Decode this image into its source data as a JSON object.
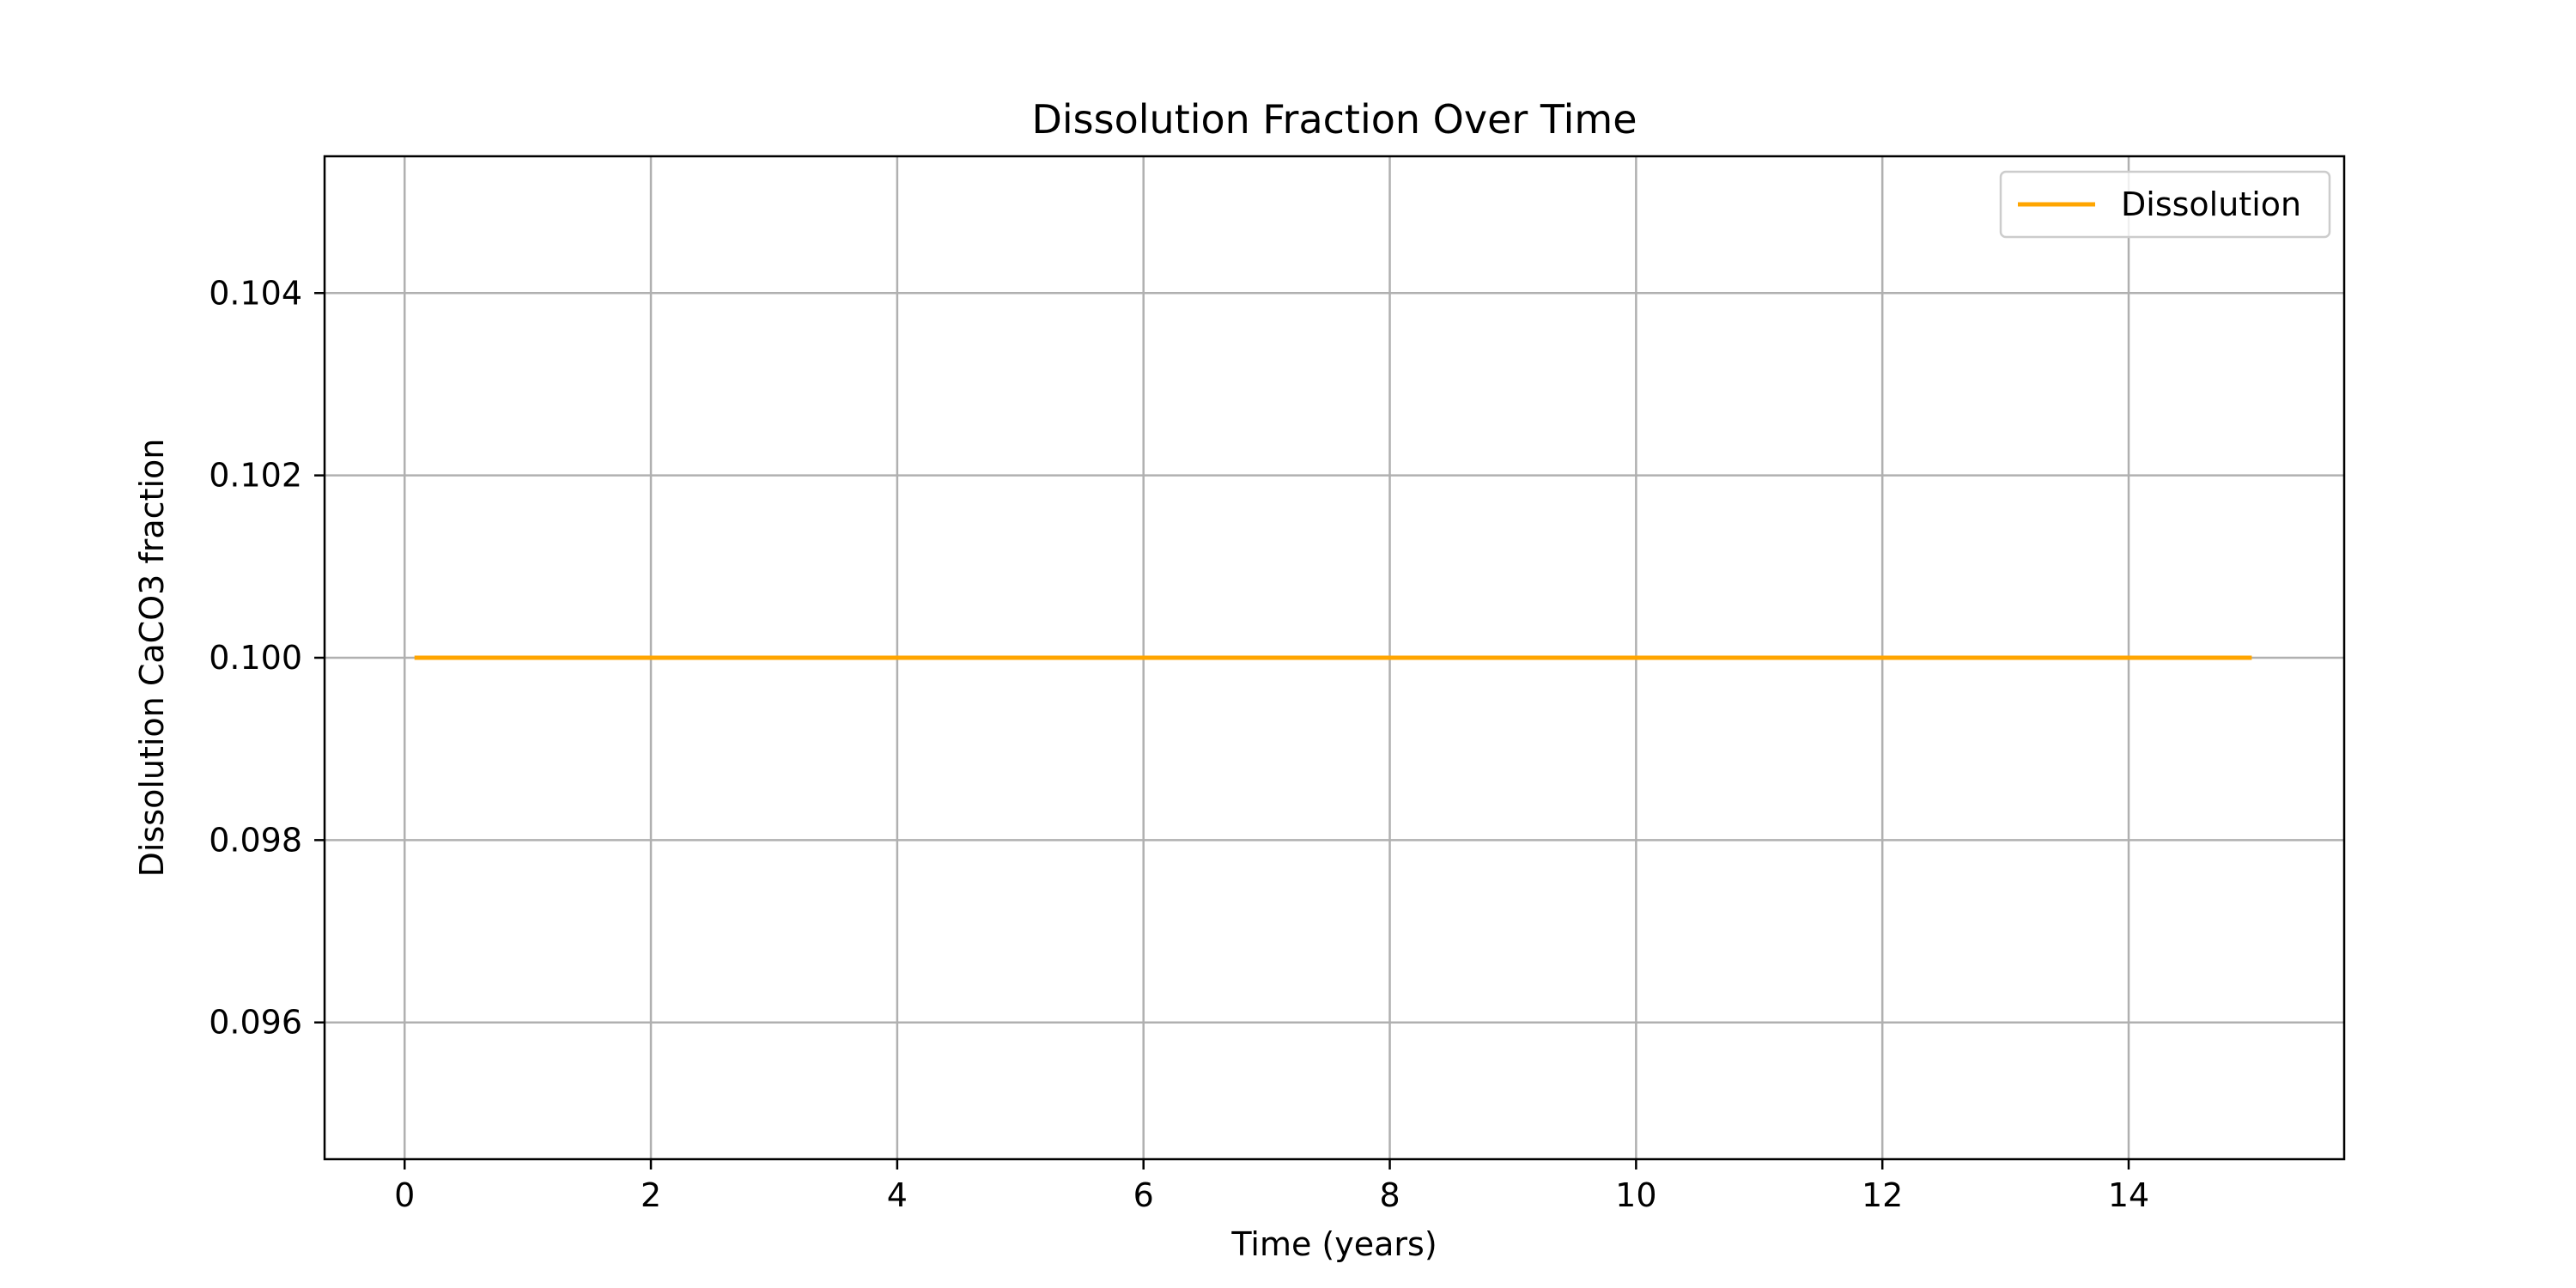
{
  "chart_data": {
    "type": "line",
    "title": "Dissolution Fraction Over Time",
    "xlabel": "Time (years)",
    "ylabel": "Dissolution CaCO3 fraction",
    "xlim": [
      -0.65,
      15.75
    ],
    "ylim": [
      0.0945,
      0.1055
    ],
    "x_ticks": [
      0,
      2,
      4,
      6,
      8,
      10,
      12,
      14
    ],
    "x_tick_labels": [
      "0",
      "2",
      "4",
      "6",
      "8",
      "10",
      "12",
      "14"
    ],
    "y_ticks": [
      0.096,
      0.098,
      0.1,
      0.102,
      0.104
    ],
    "y_tick_labels": [
      "0.096",
      "0.098",
      "0.100",
      "0.102",
      "0.104"
    ],
    "grid": true,
    "legend_position": "top-right",
    "series": [
      {
        "name": "Dissolution",
        "color": "#FFA500",
        "x": [
          0.08,
          1,
          2,
          3,
          4,
          5,
          6,
          7,
          8,
          9,
          10,
          11,
          12,
          13,
          14,
          15
        ],
        "y": [
          0.1,
          0.1,
          0.1,
          0.1,
          0.1,
          0.1,
          0.1,
          0.1,
          0.1,
          0.1,
          0.1,
          0.1,
          0.1,
          0.1,
          0.1,
          0.1
        ]
      }
    ]
  }
}
